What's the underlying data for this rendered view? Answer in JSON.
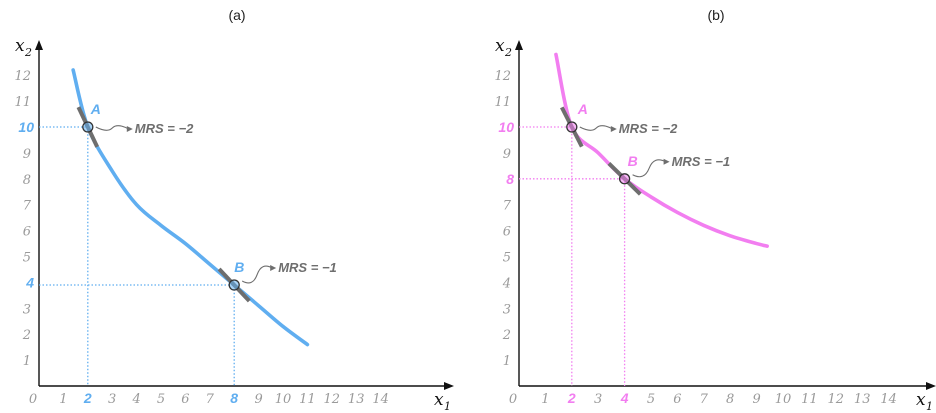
{
  "chart_data": [
    {
      "type": "line",
      "panel_title": "(a)",
      "xlabel": {
        "main": "x",
        "sub": "1"
      },
      "ylabel": {
        "main": "x",
        "sub": "2"
      },
      "xlim": [
        0,
        15
      ],
      "ylim": [
        0,
        12.5
      ],
      "x_ticks": [
        0,
        1,
        2,
        3,
        4,
        5,
        6,
        7,
        8,
        9,
        10,
        11,
        12,
        13,
        14
      ],
      "y_ticks": [
        1,
        2,
        3,
        4,
        5,
        6,
        7,
        8,
        9,
        10,
        11,
        12
      ],
      "color": "#60aef0",
      "curve": {
        "x": [
          1.4,
          2,
          3,
          4,
          5,
          6,
          7,
          8,
          9,
          10,
          11
        ],
        "y": [
          12.2,
          10.0,
          8.3,
          7.0,
          6.2,
          5.5,
          4.7,
          3.9,
          3.1,
          2.3,
          1.6
        ]
      },
      "highlight_x_ticks": [
        "2",
        "8"
      ],
      "highlight_y_ticks": [
        "10",
        "4"
      ],
      "points": [
        {
          "label": "A",
          "x": 2,
          "y": 10,
          "mrs": "MRS = −2",
          "slope": -2
        },
        {
          "label": "B",
          "x": 8,
          "y": 3.9,
          "mrs": "MRS = −1",
          "slope": -1
        }
      ]
    },
    {
      "type": "line",
      "panel_title": "(b)",
      "xlabel": {
        "main": "x",
        "sub": "1"
      },
      "ylabel": {
        "main": "x",
        "sub": "2"
      },
      "xlim": [
        0,
        15
      ],
      "ylim": [
        0,
        12.5
      ],
      "x_ticks": [
        0,
        1,
        2,
        3,
        4,
        5,
        6,
        7,
        8,
        9,
        10,
        11,
        12,
        13,
        14
      ],
      "y_ticks": [
        1,
        2,
        3,
        4,
        5,
        6,
        7,
        8,
        9,
        10,
        11,
        12
      ],
      "color": "#f27ef0",
      "curve": {
        "x": [
          1.4,
          2,
          3,
          4,
          5,
          6,
          7,
          8,
          9,
          9.4
        ],
        "y": [
          12.8,
          10.0,
          9.0,
          8.0,
          7.3,
          6.7,
          6.2,
          5.8,
          5.5,
          5.4
        ]
      },
      "highlight_x_ticks": [
        "2",
        "4"
      ],
      "highlight_y_ticks": [
        "10",
        "8"
      ],
      "points": [
        {
          "label": "A",
          "x": 2,
          "y": 10,
          "mrs": "MRS = −2",
          "slope": -2
        },
        {
          "label": "B",
          "x": 4,
          "y": 8,
          "mrs": "MRS = −1",
          "slope": -1
        }
      ]
    }
  ]
}
